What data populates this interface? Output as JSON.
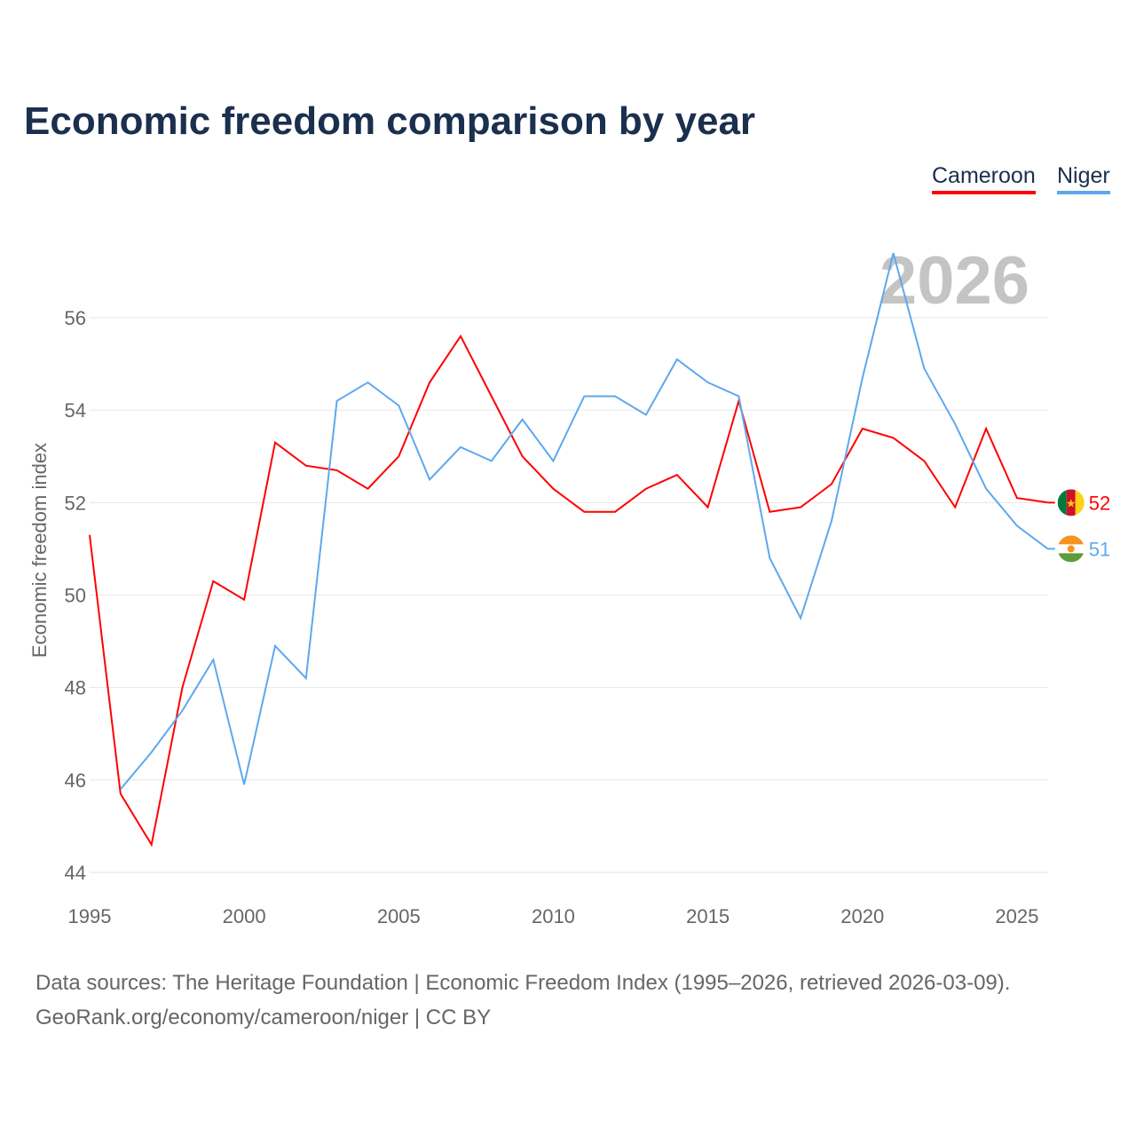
{
  "title": "Economic freedom comparison by year",
  "legend": [
    "Cameroon",
    "Niger"
  ],
  "footer": {
    "line1": "Data sources: The Heritage Foundation | Economic Freedom Index (1995–2026, retrieved 2026-03-09).",
    "line2": "GeoRank.org/economy/cameroon/niger | CC BY"
  },
  "colors": {
    "Cameroon": "#ff0000",
    "Niger": "#5ea8ee"
  },
  "chart_data": {
    "type": "line",
    "title": "Economic freedom comparison by year",
    "ylabel": "Economic freedom index",
    "xlabel": "",
    "ylim": [
      44,
      57.5
    ],
    "xlim": [
      1995,
      2026
    ],
    "yticks": [
      44,
      46,
      48,
      50,
      52,
      54,
      56
    ],
    "xticks": [
      1995,
      2000,
      2005,
      2010,
      2015,
      2020,
      2025
    ],
    "year_label": "2026",
    "x": [
      1995,
      1996,
      1997,
      1998,
      1999,
      2000,
      2001,
      2002,
      2003,
      2004,
      2005,
      2006,
      2007,
      2008,
      2009,
      2010,
      2011,
      2012,
      2013,
      2014,
      2015,
      2016,
      2017,
      2018,
      2019,
      2020,
      2021,
      2022,
      2023,
      2024,
      2025,
      2026
    ],
    "series": [
      {
        "name": "Cameroon",
        "end_label": "52",
        "values": [
          51.3,
          45.7,
          44.6,
          48.0,
          50.3,
          49.9,
          53.3,
          52.8,
          52.7,
          52.3,
          53.0,
          54.6,
          55.6,
          54.3,
          53.0,
          52.3,
          51.8,
          51.8,
          52.3,
          52.6,
          51.9,
          54.2,
          51.8,
          51.9,
          52.4,
          53.6,
          53.4,
          52.9,
          51.9,
          53.6,
          52.1,
          52.0
        ]
      },
      {
        "name": "Niger",
        "end_label": "51",
        "values": [
          null,
          45.8,
          46.6,
          47.5,
          48.6,
          45.9,
          48.9,
          48.2,
          54.2,
          54.6,
          54.1,
          52.5,
          53.2,
          52.9,
          53.8,
          52.9,
          54.3,
          54.3,
          53.9,
          55.1,
          54.6,
          54.3,
          50.8,
          49.5,
          51.6,
          54.7,
          57.4,
          54.9,
          53.7,
          52.3,
          51.5,
          51.0
        ]
      }
    ]
  }
}
